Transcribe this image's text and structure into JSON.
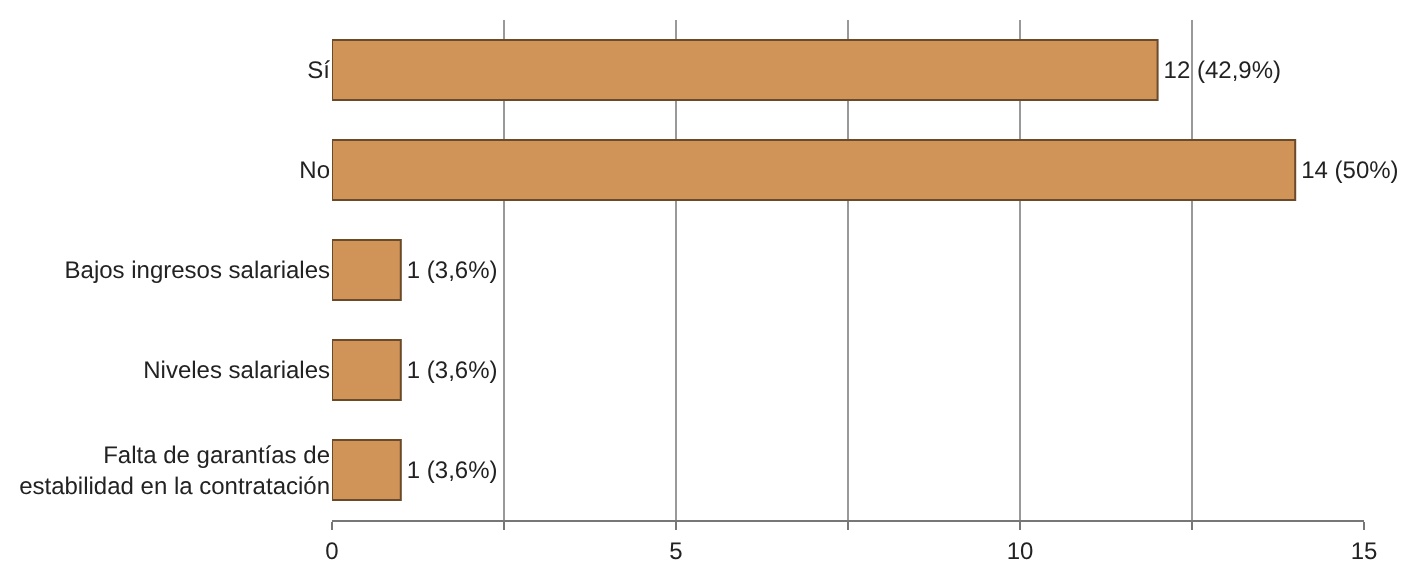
{
  "chart_data": {
    "type": "bar",
    "orientation": "horizontal",
    "categories": [
      "Sí",
      "No",
      "Bajos ingresos salariales",
      "Niveles salariales",
      "Falta de garantías de estabilidad en la contratación"
    ],
    "values": [
      12,
      14,
      1,
      1,
      1
    ],
    "value_labels": [
      "12 (42,9%)",
      "14 (50%)",
      "1 (3,6%)",
      "1 (3,6%)",
      "1 (3,6%)"
    ],
    "color": "#d09358",
    "xlim": [
      0,
      15
    ],
    "xticks": [
      0,
      {
        "value": 2.5,
        "label": null
      },
      5,
      {
        "value": 7.5,
        "label": null
      },
      10,
      {
        "value": 12.5,
        "label": null
      },
      15
    ],
    "grid": "x"
  }
}
